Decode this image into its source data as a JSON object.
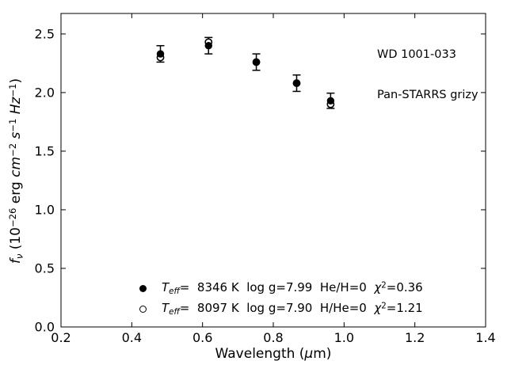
{
  "figure": {
    "background": "#ffffff",
    "foreground": "#000000"
  },
  "annotation": {
    "line1": "WD 1001-033",
    "line2": "Pan-STARRS grizy"
  },
  "axis_labels": {
    "xlabel_pre": "Wavelength (",
    "xlabel_mu": "μ",
    "xlabel_post": "m)",
    "ylabel_f": "f",
    "ylabel_nu": "ν",
    "ylabel_p1": " (10",
    "ylabel_e1": "−26",
    "ylabel_p2": " erg ",
    "ylabel_cm": "cm",
    "ylabel_e2": "−2",
    "ylabel_sp1": " ",
    "ylabel_s": "s",
    "ylabel_e3": "−1",
    "ylabel_sp2": " ",
    "ylabel_hz": "Hz",
    "ylabel_e4": "−1",
    "ylabel_close": ")"
  },
  "legend": {
    "rows": [
      {
        "marker": "filled-circle",
        "t": "T",
        "t_sub": "eff",
        "t_rest": "=  8346 K  log g=7.99  He/H=0  ",
        "chi": "χ",
        "chi_sup": "2",
        "chi_rest": "=0.36"
      },
      {
        "marker": "open-circle",
        "t": "T",
        "t_sub": "eff",
        "t_rest": "=  8097 K  log g=7.90  H/He=0  ",
        "chi": "χ",
        "chi_sup": "2",
        "chi_rest": "=1.21"
      }
    ]
  },
  "chart_data": {
    "type": "scatter",
    "title": "",
    "xlabel": "Wavelength (μm)",
    "ylabel": "fν (10⁻²⁶ erg cm⁻² s⁻¹ Hz⁻¹)",
    "xlim": [
      0.2,
      1.4
    ],
    "ylim": [
      0.0,
      2.675
    ],
    "x_ticks": [
      0.2,
      0.4,
      0.6,
      0.8,
      1.0,
      1.2,
      1.4
    ],
    "x_tick_labels": [
      "0.2",
      "0.4",
      "0.6",
      "0.8",
      "1.0",
      "1.2",
      "1.4"
    ],
    "y_ticks": [
      0.0,
      0.5,
      1.0,
      1.5,
      2.0,
      2.5
    ],
    "y_tick_labels": [
      "0.0",
      "0.5",
      "1.0",
      "1.5",
      "2.0",
      "2.5"
    ],
    "grid": false,
    "tick_direction": "in",
    "ticks_all_sides": true,
    "bands": [
      "g",
      "r",
      "i",
      "z",
      "y"
    ],
    "x": [
      0.481,
      0.617,
      0.752,
      0.866,
      0.962
    ],
    "series": [
      {
        "name": "Teff= 8346 K  log g=7.99  He/H=0  chi2=0.36",
        "marker": "filled-circle",
        "color": "#000000",
        "values": [
          2.33,
          2.4,
          2.26,
          2.08,
          1.93
        ],
        "yerr": [
          0.07,
          0.07,
          0.07,
          0.07,
          0.065
        ]
      },
      {
        "name": "Teff= 8097 K  log g=7.90  H/He=0  chi2=1.21",
        "marker": "open-circle",
        "color": "#000000",
        "values": [
          2.3,
          2.43,
          2.26,
          2.08,
          1.9
        ],
        "yerr": null
      }
    ],
    "annotation": [
      "WD 1001-033",
      "Pan-STARRS grizy"
    ],
    "annotation_position": "upper right",
    "legend_position": "lower left inside"
  }
}
